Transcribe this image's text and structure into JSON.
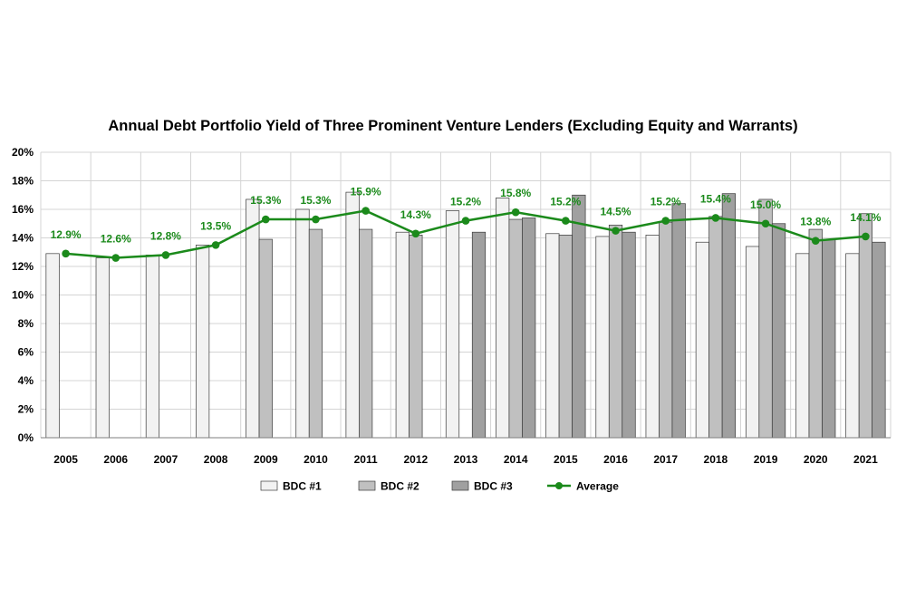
{
  "chart_data": {
    "type": "bar",
    "title": "Annual Debt Portfolio Yield of Three Prominent Venture Lenders (Excluding Equity and Warrants)",
    "xlabel": "",
    "ylabel": "",
    "ylim": [
      0,
      20
    ],
    "y_ticks": [
      "0%",
      "2%",
      "4%",
      "6%",
      "8%",
      "10%",
      "12%",
      "14%",
      "16%",
      "18%",
      "20%"
    ],
    "y_tick_values": [
      0,
      2,
      4,
      6,
      8,
      10,
      12,
      14,
      16,
      18,
      20
    ],
    "grid": true,
    "legend_position": "bottom",
    "categories": [
      "2005",
      "2006",
      "2007",
      "2008",
      "2009",
      "2010",
      "2011",
      "2012",
      "2013",
      "2014",
      "2015",
      "2016",
      "2017",
      "2018",
      "2019",
      "2020",
      "2021"
    ],
    "series": [
      {
        "name": "BDC #1",
        "type": "bar",
        "color": "#f2f2f2",
        "values": [
          12.9,
          12.6,
          12.8,
          13.5,
          16.7,
          16.0,
          17.2,
          14.4,
          15.9,
          16.8,
          14.3,
          14.1,
          14.2,
          13.7,
          13.4,
          12.9,
          12.9
        ]
      },
      {
        "name": "BDC #2",
        "type": "bar",
        "color": "#c0c0c0",
        "values": [
          null,
          null,
          null,
          null,
          13.9,
          14.6,
          14.6,
          14.2,
          null,
          15.3,
          14.2,
          14.9,
          15.1,
          15.5,
          16.7,
          14.6,
          15.7
        ]
      },
      {
        "name": "BDC #3",
        "type": "bar",
        "color": "#a0a0a0",
        "values": [
          null,
          null,
          null,
          null,
          null,
          null,
          null,
          null,
          14.4,
          15.4,
          17.0,
          14.4,
          16.4,
          17.1,
          15.0,
          13.9,
          13.7
        ]
      },
      {
        "name": "Average",
        "type": "line",
        "color": "#1b8a1b",
        "values": [
          12.9,
          12.6,
          12.8,
          13.5,
          15.3,
          15.3,
          15.9,
          14.3,
          15.2,
          15.8,
          15.2,
          14.5,
          15.2,
          15.4,
          15.0,
          13.8,
          14.1
        ],
        "labels": [
          "12.9%",
          "12.6%",
          "12.8%",
          "13.5%",
          "15.3%",
          "15.3%",
          "15.9%",
          "14.3%",
          "15.2%",
          "15.8%",
          "15.2%",
          "14.5%",
          "15.2%",
          "15.4%",
          "15.0%",
          "13.8%",
          "14.1%"
        ]
      }
    ]
  }
}
